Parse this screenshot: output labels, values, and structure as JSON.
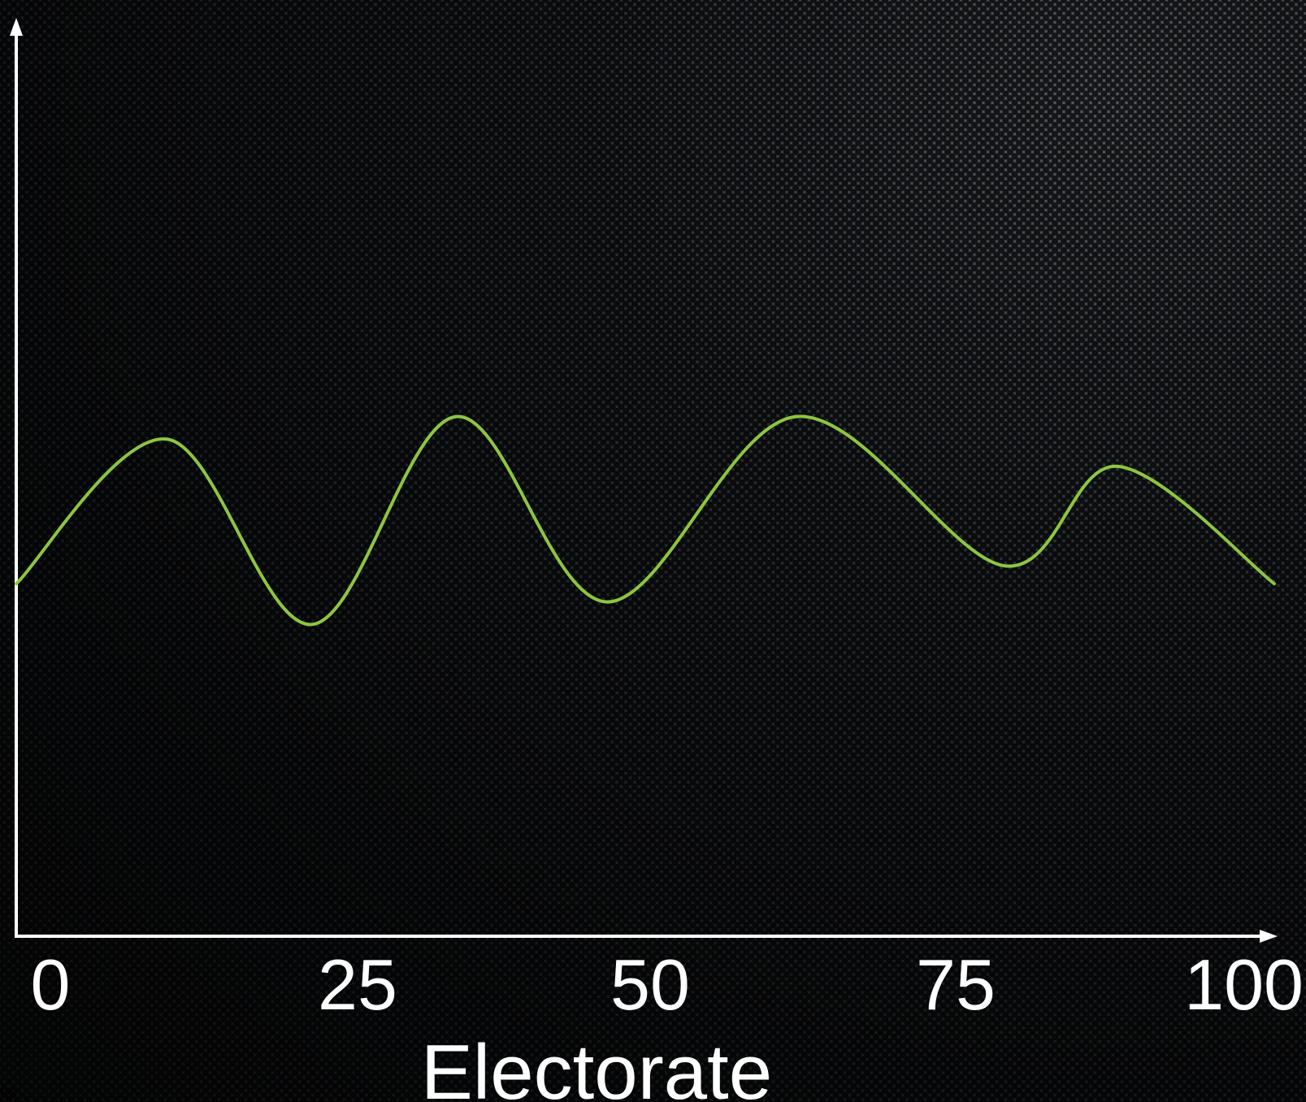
{
  "chart_data": {
    "type": "line",
    "title": "",
    "xlabel": "Electorate",
    "ylabel": "",
    "x_ticks": [
      "0",
      "25",
      "50",
      "75",
      "100"
    ],
    "xlim": [
      0,
      100
    ],
    "ylim": [
      0,
      1
    ],
    "grid": false,
    "series": [
      {
        "color": "#8dc63f",
        "x": [
          0,
          12,
          23.5,
          35,
          47,
          62,
          78.5,
          87.5,
          100
        ],
        "y": [
          0.39,
          0.55,
          0.345,
          0.575,
          0.37,
          0.575,
          0.41,
          0.52,
          0.39
        ]
      }
    ]
  }
}
